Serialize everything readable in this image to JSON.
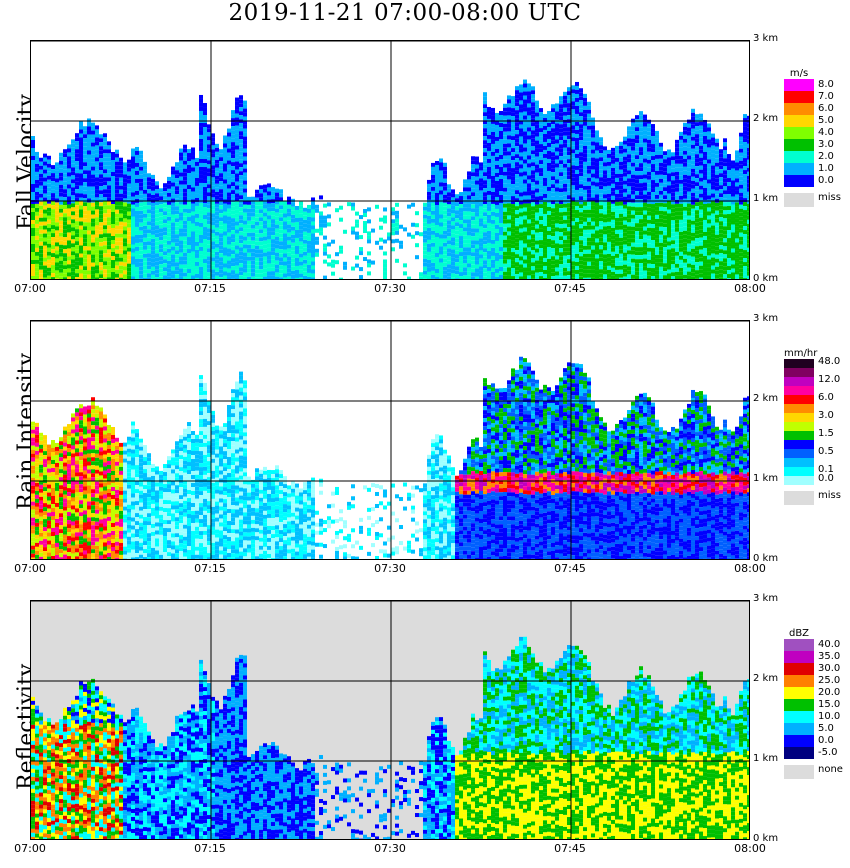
{
  "title": "2019-11-21   07:00-08:00 UTC",
  "x_ticks": [
    "07:00",
    "07:15",
    "07:30",
    "07:45",
    "08:00"
  ],
  "y_ticks": [
    "0 km",
    "1 km",
    "2 km",
    "3 km"
  ],
  "panels": [
    {
      "name": "fall-velocity",
      "label": "Fall Velocity",
      "unit": "m/s",
      "background": "#ffffff",
      "legend": [
        {
          "label": "8.0",
          "color": "#ff00ff"
        },
        {
          "label": "7.0",
          "color": "#ff0000"
        },
        {
          "label": "6.0",
          "color": "#ff8c00"
        },
        {
          "label": "5.0",
          "color": "#ffd700"
        },
        {
          "label": "4.0",
          "color": "#7fff00"
        },
        {
          "label": "3.0",
          "color": "#00c000"
        },
        {
          "label": "2.0",
          "color": "#00ffd0"
        },
        {
          "label": "1.0",
          "color": "#00b0ff"
        },
        {
          "label": "0.0",
          "color": "#0000ff"
        }
      ],
      "missing": {
        "label": "miss",
        "color": "#dcdcdc"
      }
    },
    {
      "name": "rain-intensity",
      "label": "Rain Intensity",
      "unit": "mm/hr",
      "background": "#ffffff",
      "legend": [
        {
          "label": "48.0",
          "color": "#200020"
        },
        {
          "label": "",
          "color": "#800060"
        },
        {
          "label": "12.0",
          "color": "#c000c0"
        },
        {
          "label": "",
          "color": "#ff00a0"
        },
        {
          "label": "6.0",
          "color": "#ff0000"
        },
        {
          "label": "",
          "color": "#ff8c00"
        },
        {
          "label": "3.0",
          "color": "#ffd700"
        },
        {
          "label": "",
          "color": "#c0ff00"
        },
        {
          "label": "1.5",
          "color": "#00c000"
        },
        {
          "label": "",
          "color": "#0000ff"
        },
        {
          "label": "0.5",
          "color": "#0060ff"
        },
        {
          "label": "",
          "color": "#00c0ff"
        },
        {
          "label": "0.1",
          "color": "#00ffff"
        },
        {
          "label": "0.0",
          "color": "#a0ffff"
        }
      ],
      "missing": {
        "label": "miss",
        "color": "#dcdcdc"
      }
    },
    {
      "name": "reflectivity",
      "label": "Reflectivity",
      "unit": "dBZ",
      "background": "#dcdcdc",
      "legend": [
        {
          "label": "40.0",
          "color": "#a050c0"
        },
        {
          "label": "35.0",
          "color": "#c000c0"
        },
        {
          "label": "30.0",
          "color": "#e00000"
        },
        {
          "label": "25.0",
          "color": "#ff8000"
        },
        {
          "label": "20.0",
          "color": "#ffff00"
        },
        {
          "label": "15.0",
          "color": "#00c000"
        },
        {
          "label": "10.0",
          "color": "#00ffff"
        },
        {
          "label": "5.0",
          "color": "#00b0ff"
        },
        {
          "label": "0.0",
          "color": "#0000ff"
        },
        {
          "label": "-5.0",
          "color": "#000080"
        }
      ],
      "missing": {
        "label": "none",
        "color": "#dcdcdc"
      }
    }
  ]
}
